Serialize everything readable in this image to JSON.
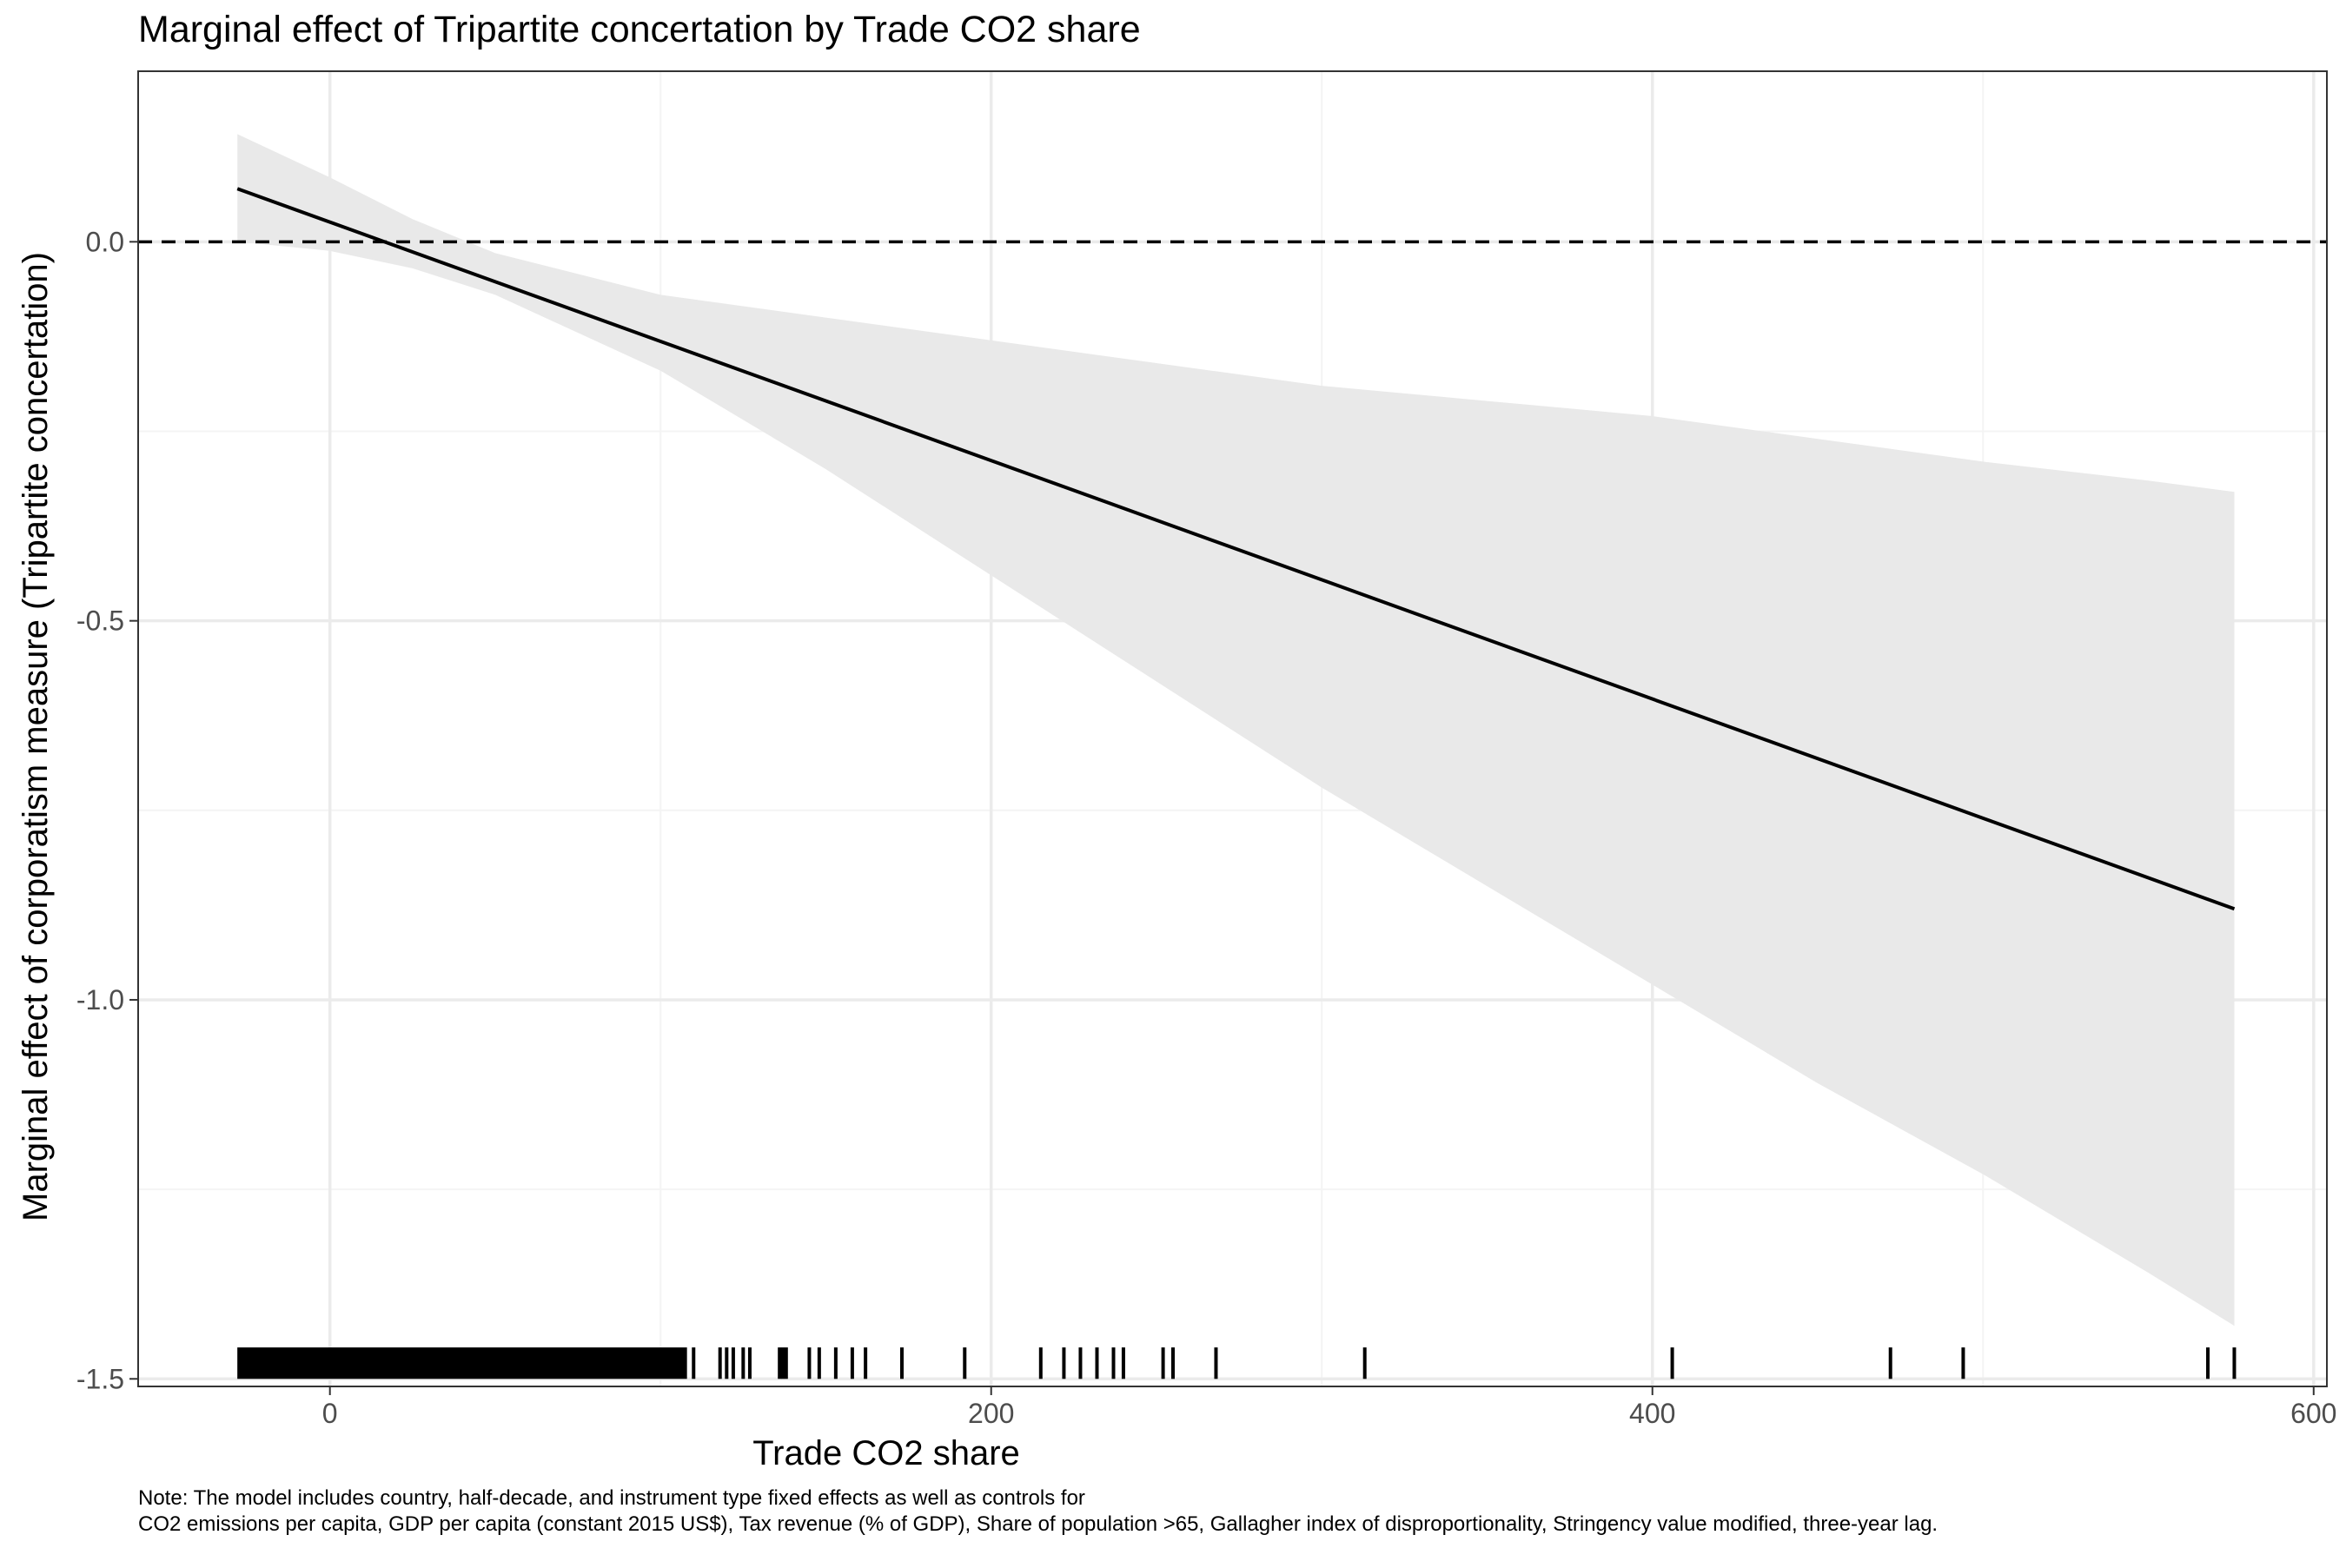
{
  "chart_data": {
    "type": "line",
    "title": "Marginal effect of Tripartite concertation by Trade CO2 share",
    "xlabel": "Trade CO2 share",
    "ylabel": "Marginal effect of corporatism measure (Tripartite concertation)",
    "xlim": [
      -58,
      604
    ],
    "ylim": [
      -1.51,
      0.225
    ],
    "x_ticks": [
      0,
      200,
      400,
      600
    ],
    "x_tick_labels": [
      "0",
      "200",
      "400",
      "600"
    ],
    "x_minor_ticks": [
      100,
      300,
      500
    ],
    "y_ticks": [
      0.0,
      -0.5,
      -1.0,
      -1.5
    ],
    "y_tick_labels": [
      "0.0",
      "-0.5",
      "-1.0",
      "-1.5"
    ],
    "y_minor_ticks": [
      -0.25,
      -0.75,
      -1.25
    ],
    "grid": true,
    "reference_line": {
      "y": 0,
      "style": "dashed"
    },
    "series": [
      {
        "type": "line",
        "x": [
          -28,
          576
        ],
        "y": [
          0.07,
          -0.88
        ]
      },
      {
        "type": "ribbon",
        "x": [
          -28,
          0,
          25,
          50,
          100,
          150,
          200,
          250,
          300,
          350,
          400,
          450,
          500,
          550,
          576
        ],
        "lower": [
          0.0,
          -0.012,
          -0.035,
          -0.07,
          -0.17,
          -0.3,
          -0.44,
          -0.58,
          -0.72,
          -0.85,
          -0.98,
          -1.11,
          -1.23,
          -1.36,
          -1.43
        ],
        "upper": [
          0.142,
          0.085,
          0.03,
          -0.015,
          -0.07,
          -0.1,
          -0.13,
          -0.16,
          -0.19,
          -0.21,
          -0.23,
          -0.26,
          -0.29,
          -0.315,
          -0.33
        ]
      }
    ],
    "rug": {
      "y_range": [
        -1.5,
        -1.47
      ],
      "dense_from": -28,
      "dense_to": 108,
      "x": [
        110,
        118,
        120,
        122,
        125,
        127,
        136,
        137,
        138,
        145,
        148,
        153,
        158,
        162,
        173,
        192,
        215,
        222,
        227,
        232,
        237,
        240,
        252,
        255,
        268,
        313,
        406,
        472,
        494,
        568,
        576
      ]
    },
    "colors": {
      "line": "#000000",
      "ribbon": "#e9e9e9",
      "grid_major": "#ebebeb",
      "grid_minor": "#f4f4f4",
      "axis_text": "#4d4d4d",
      "panel_border": "#333333"
    }
  },
  "note": {
    "line1": "Note: The model includes country, half-decade, and instrument type fixed effects as well as controls for",
    "line2": "CO2 emissions per capita, GDP per capita (constant 2015 US$), Tax revenue (% of GDP), Share of population >65, Gallagher index of disproportionality, Stringency value modified, three-year lag."
  }
}
